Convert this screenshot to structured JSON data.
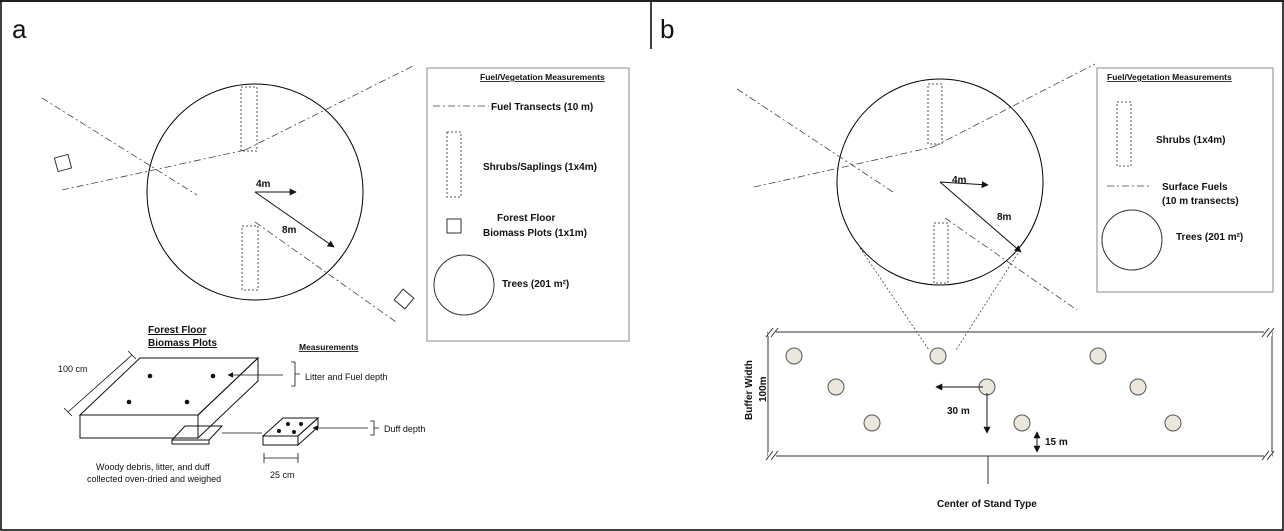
{
  "panels": {
    "a": {
      "letter": "a",
      "radius_inner": "4m",
      "radius_outer": "8m",
      "legend": {
        "title": "Fuel/Vegetation Measurements",
        "fuel_transects": "Fuel Transects   (10 m)",
        "shrubs_saplings": "Shrubs/Saplings (1x4m)",
        "forest_floor_line1": "Forest Floor",
        "forest_floor_line2": "Biomass Plots   (1x1m)",
        "trees": "Trees (201 m²)"
      },
      "biomass": {
        "title_line1": "Forest Floor",
        "title_line2": "Biomass Plots",
        "measurements": "Measurements",
        "size_100cm": "100 cm",
        "litter_fuel": "Litter  and Fuel depth",
        "duff_depth": "Duff depth",
        "size_25cm": "25 cm",
        "caption_line1": "Woody debris, litter, and duff",
        "caption_line2": "collected oven-dried and weighed"
      }
    },
    "b": {
      "letter": "b",
      "radius_inner": "4m",
      "radius_outer": "8m",
      "legend": {
        "title": "Fuel/Vegetation Measurements",
        "shrubs": "Shrubs (1x4m)",
        "surface_fuels_line1": "Surface Fuels",
        "surface_fuels_line2": "(10 m transects)",
        "trees": "Trees (201 m²)"
      },
      "stand": {
        "buffer_width_line1": "Buffer Width",
        "buffer_width_line2": "100m",
        "spacing_30": "30 m",
        "spacing_15": "15 m",
        "center_label": "Center of Stand Type"
      }
    }
  }
}
